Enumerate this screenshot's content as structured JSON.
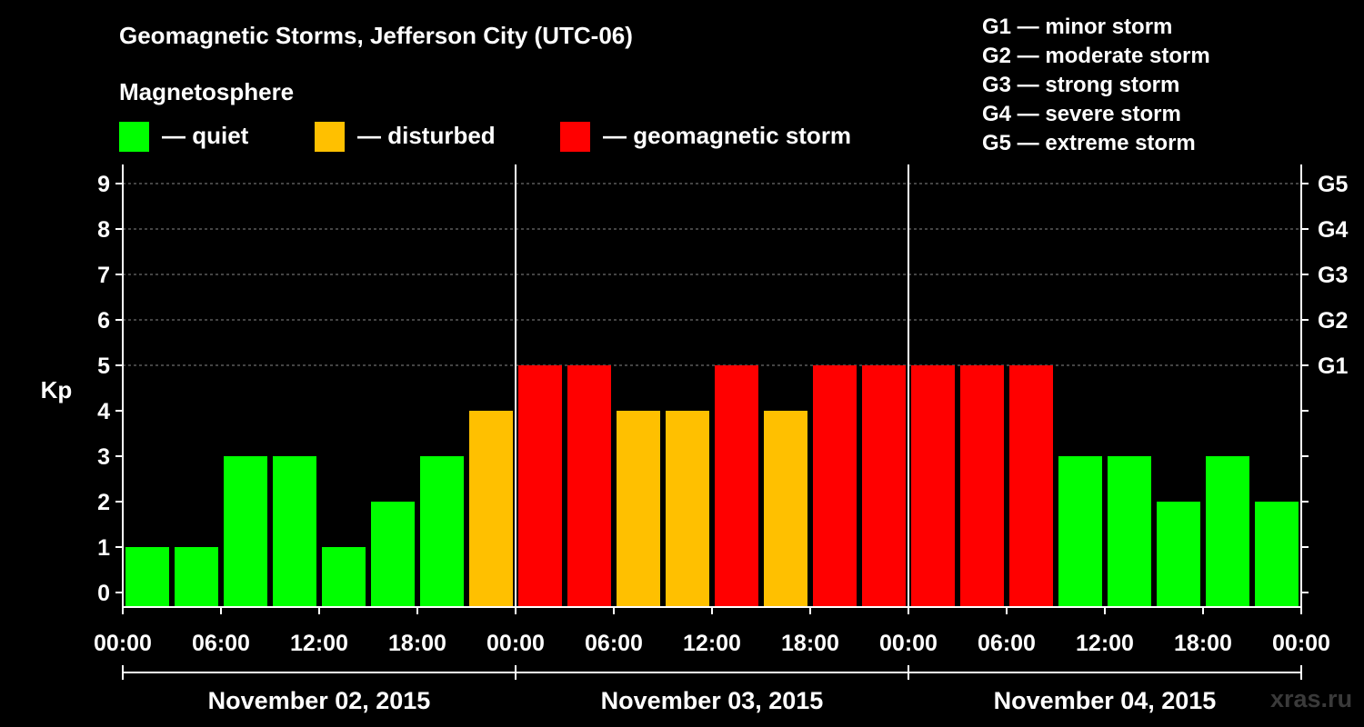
{
  "title": "Geomagnetic Storms, Jefferson City (UTC-06)",
  "legend": {
    "heading": "Magnetosphere",
    "items": [
      {
        "label": "— quiet",
        "color": "#00ff00"
      },
      {
        "label": "— disturbed",
        "color": "#ffc000"
      },
      {
        "label": "— geomagnetic storm",
        "color": "#ff0000"
      }
    ]
  },
  "storm_scale": [
    "G1 — minor storm",
    "G2 — moderate storm",
    "G3 — strong storm",
    "G4 — severe storm",
    "G5 — extreme storm"
  ],
  "watermark": "xras.ru",
  "chart_data": {
    "type": "bar",
    "ylabel": "Kp",
    "ylim": [
      0,
      9
    ],
    "yticks": [
      0,
      1,
      2,
      3,
      4,
      5,
      6,
      7,
      8,
      9
    ],
    "right_ticks": [
      {
        "label": "G5",
        "kp": 9
      },
      {
        "label": "G4",
        "kp": 8
      },
      {
        "label": "G3",
        "kp": 7
      },
      {
        "label": "G2",
        "kp": 6
      },
      {
        "label": "G1",
        "kp": 5
      }
    ],
    "grid": "horizontal dashed at Kp 6, 7, 8, 9",
    "xtick_labels": [
      "00:00",
      "06:00",
      "12:00",
      "18:00",
      "00:00",
      "06:00",
      "12:00",
      "18:00",
      "00:00",
      "06:00",
      "12:00",
      "18:00",
      "00:00"
    ],
    "days": [
      "November 02, 2015",
      "November 03, 2015",
      "November 04, 2015"
    ],
    "interval_hours": 3,
    "values": [
      1,
      1,
      3,
      3,
      1,
      2,
      3,
      4,
      5,
      5,
      4,
      4,
      5,
      4,
      5,
      5,
      5,
      5,
      5,
      3,
      3,
      2,
      3,
      2
    ],
    "colors": {
      "quiet": "#00ff00",
      "disturbed": "#ffc000",
      "storm": "#ff0000"
    }
  }
}
